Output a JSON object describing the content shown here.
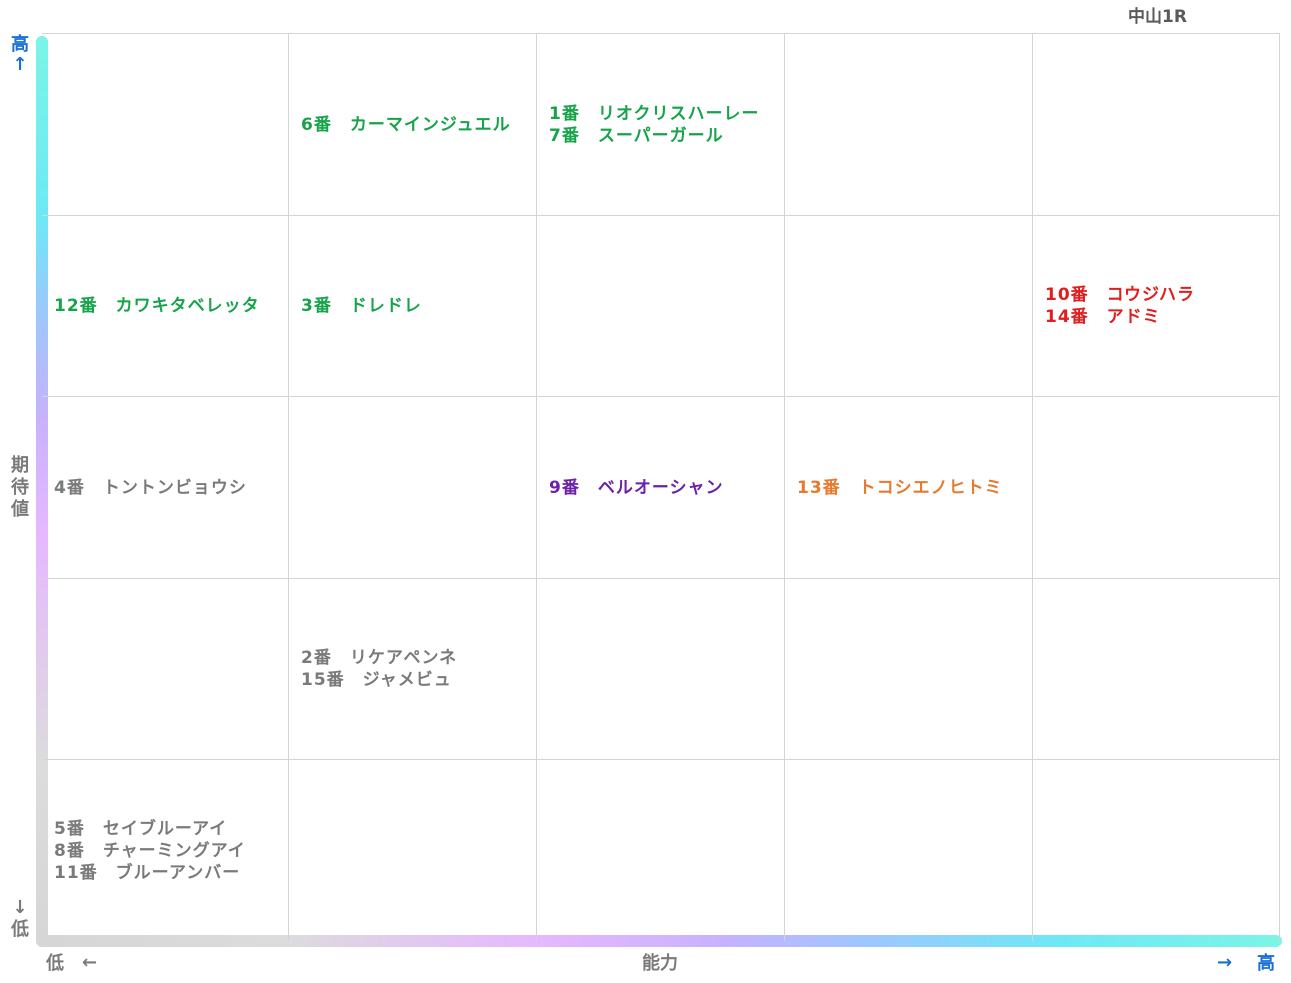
{
  "race": "中山1R",
  "chart_data": {
    "type": "table",
    "xlabel": "能力",
    "ylabel": "期待値",
    "x_high": "高",
    "x_low": "低",
    "y_high": "高",
    "y_low": "低",
    "columns": 5,
    "rows": 5,
    "cells": [
      {
        "row": 0,
        "col": 1,
        "color": "green",
        "entries": [
          "6番　カーマインジュエル"
        ]
      },
      {
        "row": 0,
        "col": 2,
        "color": "green",
        "entries": [
          "1番　リオクリスハーレー",
          "7番　スーパーガール"
        ]
      },
      {
        "row": 1,
        "col": 0,
        "color": "green",
        "entries": [
          "12番　カワキタベレッタ"
        ]
      },
      {
        "row": 1,
        "col": 1,
        "color": "green",
        "entries": [
          "3番　ドレドレ"
        ]
      },
      {
        "row": 1,
        "col": 4,
        "color": "red",
        "entries": [
          "10番　コウジハラ",
          "14番　アドミ"
        ]
      },
      {
        "row": 2,
        "col": 0,
        "color": "gray",
        "entries": [
          "4番　トントンビョウシ"
        ]
      },
      {
        "row": 2,
        "col": 2,
        "color": "purple",
        "entries": [
          "9番　ベルオーシャン"
        ]
      },
      {
        "row": 2,
        "col": 3,
        "color": "orange",
        "entries": [
          "13番　トコシエノヒトミ"
        ]
      },
      {
        "row": 3,
        "col": 1,
        "color": "gray",
        "entries": [
          "2番　リケアペンネ",
          "15番　ジャメビュ"
        ]
      },
      {
        "row": 4,
        "col": 0,
        "color": "gray",
        "entries": [
          "5番　セイブルーアイ",
          "8番　チャーミングアイ",
          "11番　ブルーアンバー"
        ]
      }
    ]
  },
  "axis": {
    "y_arrow_up": "↑",
    "y_arrow_down": "↓",
    "x_arrow_left": "←",
    "x_arrow_right": "→"
  },
  "colors": {
    "green": "#16a34a",
    "red": "#e11d1d",
    "purple": "#6b21a8",
    "orange": "#e67a2e",
    "gray": "#7a7a7a"
  }
}
